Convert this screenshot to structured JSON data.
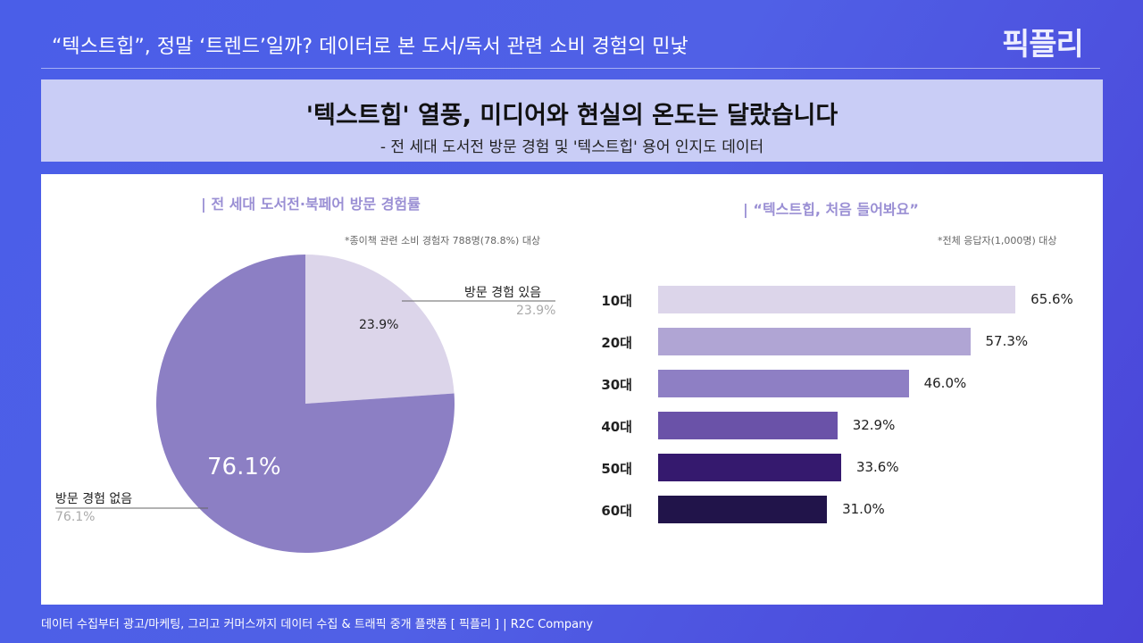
{
  "header": {
    "title": "“텍스트힙”, 정말 ‘트렌드’일까? 데이터로 본 도서/독서 관련 소비 경험의 민낯",
    "logo": "픽플리"
  },
  "banner": {
    "headline": "'텍스트힙' 열풍, 미디어와 현실의 온도는 달랐습니다",
    "subtitle": "- 전 세대 도서전 방문 경험 및 '텍스트힙' 용어 인지도 데이터"
  },
  "chart_data": [
    {
      "type": "pie",
      "title": "전 세대 도서전·북페어 방문 경험률",
      "note": "*종이책 관련 소비 경험자 788명(78.8%) 대상",
      "slices": [
        {
          "label": "방문 경험 있음",
          "value": 23.9,
          "display": "23.9%",
          "color": "#dcd5ea"
        },
        {
          "label": "방문 경험 없음",
          "value": 76.1,
          "display": "76.1%",
          "color": "#8c7fc4"
        }
      ]
    },
    {
      "type": "bar",
      "orientation": "horizontal",
      "title": "“텍스트힙, 처음 들어봐요”",
      "note": "*전체 응답자(1,000명) 대상",
      "categories": [
        "10대",
        "20대",
        "30대",
        "40대",
        "50대",
        "60대"
      ],
      "values": [
        65.6,
        57.3,
        46.0,
        32.9,
        33.6,
        31.0
      ],
      "labels": [
        "65.6%",
        "57.3%",
        "46.0%",
        "32.9%",
        "33.6%",
        "31.0%"
      ],
      "colors": [
        "#dcd5ea",
        "#b0a5d4",
        "#8e7fc4",
        "#6a52a8",
        "#35196e",
        "#21144a"
      ]
    }
  ],
  "footer": {
    "text": "데이터 수집부터 광고/마케팅, 그리고 커머스까지 데이터 수집 & 트래픽 중개 플랫폼 [ 픽플리 ]  |  R2C Company"
  }
}
